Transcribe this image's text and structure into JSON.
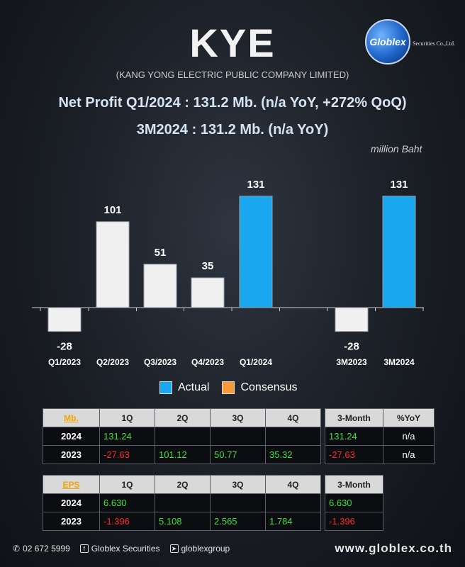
{
  "header": {
    "ticker": "KYE",
    "company": "(KANG YONG ELECTRIC PUBLIC COMPANY LIMITED)",
    "logo_text": "Globlex",
    "logo_caption": "Securities Co.,Ltd.",
    "headline1": "Net Profit  Q1/2024 : 131.2 Mb. (n/a YoY, +272% QoQ)",
    "headline2": "3M2024 : 131.2 Mb. (n/a YoY)",
    "unit": "million Baht"
  },
  "chart_data": {
    "type": "bar",
    "categories": [
      "Q1/2023",
      "Q2/2023",
      "Q3/2023",
      "Q4/2023",
      "Q1/2024",
      "",
      "3M2023",
      "3M2024"
    ],
    "values": [
      -28,
      101,
      51,
      35,
      131,
      null,
      -28,
      131
    ],
    "value_labels": [
      "-28",
      "101",
      "51",
      "35",
      "131",
      "",
      "-28",
      "131"
    ],
    "actual_flags": [
      false,
      false,
      false,
      false,
      true,
      false,
      false,
      true
    ],
    "colors": {
      "past": "#f0f0f0",
      "actual": "#19a8f0",
      "consensus": "#f79a3a"
    },
    "legend": [
      "Actual",
      "Consensus"
    ],
    "ylim": [
      -45,
      145
    ]
  },
  "table_profit": {
    "key": "Mb.",
    "headers": [
      "1Q",
      "2Q",
      "3Q",
      "4Q"
    ],
    "rows": [
      {
        "year": "2024",
        "cells": [
          "131.24",
          "",
          "",
          ""
        ]
      },
      {
        "year": "2023",
        "cells": [
          "-27.63",
          "101.12",
          "50.77",
          "35.32"
        ]
      }
    ]
  },
  "table_profit_3m": {
    "headers": [
      "3-Month",
      "%YoY"
    ],
    "rows": [
      {
        "cells": [
          "131.24",
          "n/a"
        ]
      },
      {
        "cells": [
          "-27.63",
          "n/a"
        ]
      }
    ]
  },
  "table_eps": {
    "key": "EPS",
    "headers": [
      "1Q",
      "2Q",
      "3Q",
      "4Q"
    ],
    "rows": [
      {
        "year": "2024",
        "cells": [
          "6.630",
          "",
          "",
          ""
        ]
      },
      {
        "year": "2023",
        "cells": [
          "-1.396",
          "5.108",
          "2.565",
          "1.784"
        ]
      }
    ]
  },
  "table_eps_3m": {
    "headers": [
      "3-Month"
    ],
    "rows": [
      {
        "cells": [
          "6.630"
        ]
      },
      {
        "cells": [
          "-1.396"
        ]
      }
    ]
  },
  "footer": {
    "phone": "02 672 5999",
    "facebook": "Globlex Securities",
    "telegram": "globlexgroup",
    "website": "www.globlex.co.th"
  }
}
